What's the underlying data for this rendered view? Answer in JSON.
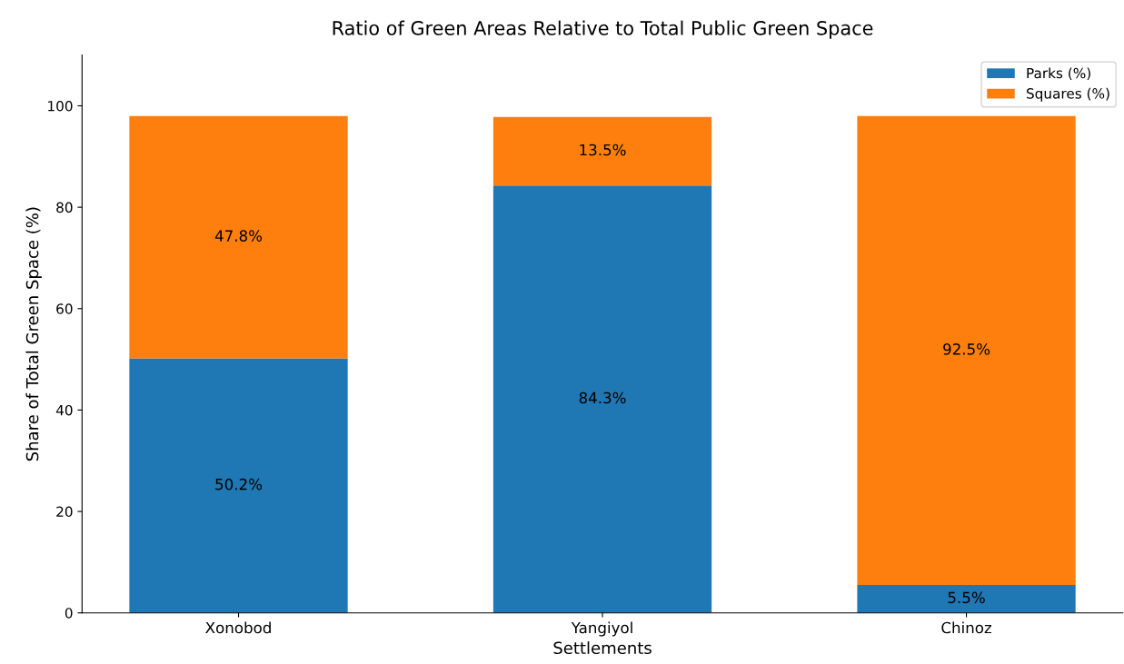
{
  "chart_data": {
    "type": "bar",
    "stacked": true,
    "title": "Ratio of Green Areas Relative to Total Public Green Space",
    "xlabel": "Settlements",
    "ylabel": "Share of Total Green Space (%)",
    "categories": [
      "Xonobod",
      "Yangiyol",
      "Chinoz"
    ],
    "series": [
      {
        "name": "Parks (%)",
        "color": "#1f77b4",
        "values": [
          50.2,
          84.3,
          5.5
        ],
        "value_labels": [
          "50.2%",
          "84.3%",
          "5.5%"
        ]
      },
      {
        "name": "Squares (%)",
        "color": "#ff7f0e",
        "values": [
          47.8,
          13.5,
          92.5
        ],
        "value_labels": [
          "47.8%",
          "13.5%",
          "92.5%"
        ]
      }
    ],
    "ylim": [
      0,
      110
    ],
    "yticks": [
      0,
      20,
      40,
      60,
      80,
      100
    ],
    "legend": "top right",
    "grid": false
  }
}
